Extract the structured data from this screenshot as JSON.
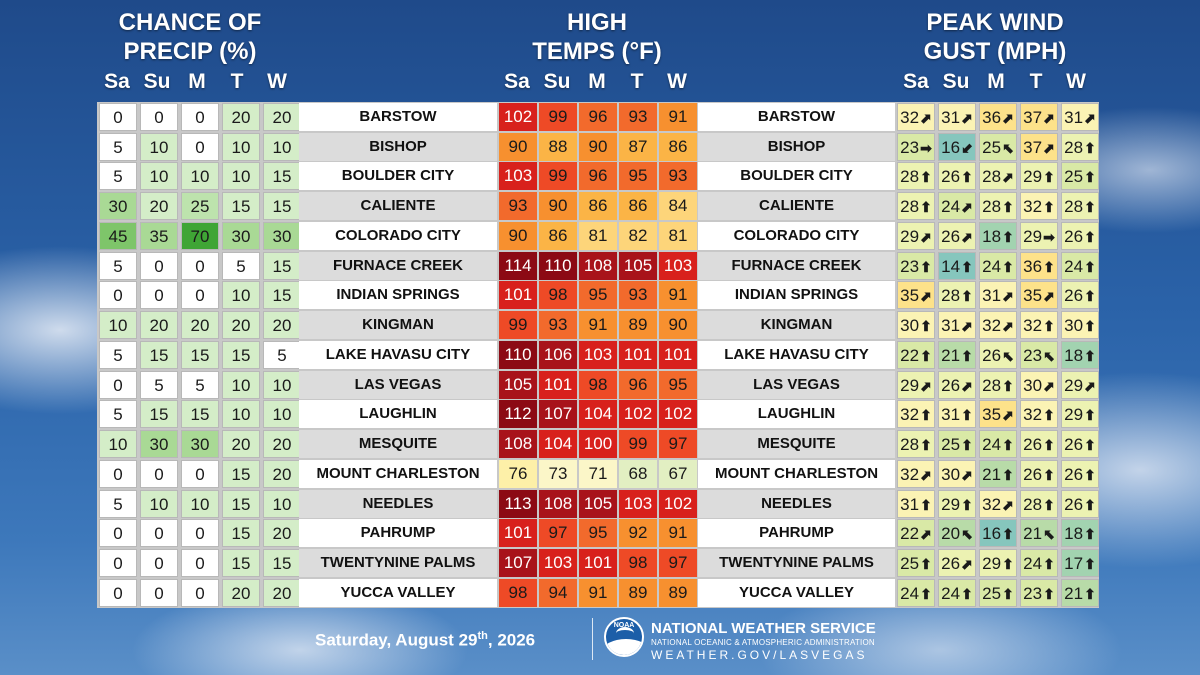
{
  "headers": {
    "precip": [
      "CHANCE OF",
      "PRECIP (%)"
    ],
    "temps": [
      "HIGH",
      "TEMPS (°F)"
    ],
    "wind": [
      "PEAK WIND",
      "GUST (MPH)"
    ]
  },
  "days": [
    "Sa",
    "Su",
    "M",
    "T",
    "W"
  ],
  "rows": [
    {
      "city": "BARSTOW",
      "precip": [
        0,
        0,
        0,
        20,
        20
      ],
      "temps": [
        102,
        99,
        96,
        93,
        91
      ],
      "gusts": [
        32,
        31,
        36,
        37,
        31
      ],
      "dirs": [
        "ne",
        "ne",
        "ne",
        "ne",
        "ne"
      ]
    },
    {
      "city": "BISHOP",
      "precip": [
        5,
        10,
        0,
        10,
        10
      ],
      "temps": [
        90,
        88,
        90,
        87,
        86
      ],
      "gusts": [
        23,
        16,
        25,
        37,
        28
      ],
      "dirs": [
        "e",
        "sw",
        "nw",
        "ne",
        "n"
      ]
    },
    {
      "city": "BOULDER CITY",
      "precip": [
        5,
        10,
        10,
        10,
        15
      ],
      "temps": [
        103,
        99,
        96,
        95,
        93
      ],
      "gusts": [
        28,
        26,
        28,
        29,
        25
      ],
      "dirs": [
        "n",
        "n",
        "ne",
        "n",
        "n"
      ]
    },
    {
      "city": "CALIENTE",
      "precip": [
        30,
        20,
        25,
        15,
        15
      ],
      "temps": [
        93,
        90,
        86,
        86,
        84
      ],
      "gusts": [
        28,
        24,
        28,
        32,
        28
      ],
      "dirs": [
        "n",
        "ne",
        "n",
        "n",
        "n"
      ]
    },
    {
      "city": "COLORADO CITY",
      "precip": [
        45,
        35,
        70,
        30,
        30
      ],
      "temps": [
        90,
        86,
        81,
        82,
        81
      ],
      "gusts": [
        29,
        26,
        18,
        29,
        26
      ],
      "dirs": [
        "ne",
        "ne",
        "n",
        "e",
        "n"
      ]
    },
    {
      "city": "FURNACE CREEK",
      "precip": [
        5,
        0,
        0,
        5,
        15
      ],
      "temps": [
        114,
        110,
        108,
        105,
        103
      ],
      "gusts": [
        23,
        14,
        24,
        36,
        24
      ],
      "dirs": [
        "n",
        "n",
        "n",
        "n",
        "n"
      ]
    },
    {
      "city": "INDIAN SPRINGS",
      "precip": [
        0,
        0,
        0,
        10,
        15
      ],
      "temps": [
        101,
        98,
        95,
        93,
        91
      ],
      "gusts": [
        35,
        28,
        31,
        35,
        26
      ],
      "dirs": [
        "ne",
        "n",
        "ne",
        "ne",
        "n"
      ]
    },
    {
      "city": "KINGMAN",
      "precip": [
        10,
        20,
        20,
        20,
        20
      ],
      "temps": [
        99,
        93,
        91,
        89,
        90
      ],
      "gusts": [
        30,
        31,
        32,
        32,
        30
      ],
      "dirs": [
        "n",
        "ne",
        "ne",
        "n",
        "n"
      ]
    },
    {
      "city": "LAKE HAVASU CITY",
      "precip": [
        5,
        15,
        15,
        15,
        5
      ],
      "temps": [
        110,
        106,
        103,
        101,
        101
      ],
      "gusts": [
        22,
        21,
        26,
        23,
        18
      ],
      "dirs": [
        "n",
        "n",
        "nw",
        "nw",
        "n"
      ]
    },
    {
      "city": "LAS VEGAS",
      "precip": [
        0,
        5,
        5,
        10,
        10
      ],
      "temps": [
        105,
        101,
        98,
        96,
        95
      ],
      "gusts": [
        29,
        26,
        28,
        30,
        29
      ],
      "dirs": [
        "ne",
        "ne",
        "n",
        "ne",
        "ne"
      ]
    },
    {
      "city": "LAUGHLIN",
      "precip": [
        5,
        15,
        15,
        10,
        10
      ],
      "temps": [
        112,
        107,
        104,
        102,
        102
      ],
      "gusts": [
        32,
        31,
        35,
        32,
        29
      ],
      "dirs": [
        "n",
        "n",
        "ne",
        "n",
        "n"
      ]
    },
    {
      "city": "MESQUITE",
      "precip": [
        10,
        30,
        30,
        20,
        20
      ],
      "temps": [
        108,
        104,
        100,
        99,
        97
      ],
      "gusts": [
        28,
        25,
        24,
        26,
        26
      ],
      "dirs": [
        "n",
        "n",
        "n",
        "n",
        "n"
      ]
    },
    {
      "city": "MOUNT CHARLESTON",
      "precip": [
        0,
        0,
        0,
        15,
        20
      ],
      "temps": [
        76,
        73,
        71,
        68,
        67
      ],
      "gusts": [
        32,
        30,
        21,
        26,
        26
      ],
      "dirs": [
        "ne",
        "ne",
        "n",
        "n",
        "n"
      ]
    },
    {
      "city": "NEEDLES",
      "precip": [
        5,
        10,
        10,
        15,
        10
      ],
      "temps": [
        113,
        108,
        105,
        103,
        102
      ],
      "gusts": [
        31,
        29,
        32,
        28,
        26
      ],
      "dirs": [
        "n",
        "n",
        "ne",
        "n",
        "n"
      ]
    },
    {
      "city": "PAHRUMP",
      "precip": [
        0,
        0,
        0,
        15,
        20
      ],
      "temps": [
        101,
        97,
        95,
        92,
        91
      ],
      "gusts": [
        22,
        20,
        16,
        21,
        18
      ],
      "dirs": [
        "ne",
        "nw",
        "n",
        "nw",
        "n"
      ]
    },
    {
      "city": "TWENTYNINE PALMS",
      "precip": [
        0,
        0,
        0,
        15,
        15
      ],
      "temps": [
        107,
        103,
        101,
        98,
        97
      ],
      "gusts": [
        25,
        26,
        29,
        24,
        17
      ],
      "dirs": [
        "n",
        "ne",
        "n",
        "n",
        "n"
      ]
    },
    {
      "city": "YUCCA VALLEY",
      "precip": [
        0,
        0,
        0,
        20,
        20
      ],
      "temps": [
        98,
        94,
        91,
        89,
        89
      ],
      "gusts": [
        24,
        24,
        25,
        23,
        21
      ],
      "dirs": [
        "n",
        "n",
        "n",
        "n",
        "n"
      ]
    }
  ],
  "footer": {
    "date_main": "Saturday, August 29",
    "date_sup": "th",
    "date_year": ", 2026",
    "org_name": "NATIONAL WEATHER SERVICE",
    "org_sub": "NATIONAL OCEANIC & ATMOSPHERIC ADMINISTRATION",
    "org_url": "WEATHER.GOV/LASVEGAS",
    "logo_text": "NOAA"
  }
}
